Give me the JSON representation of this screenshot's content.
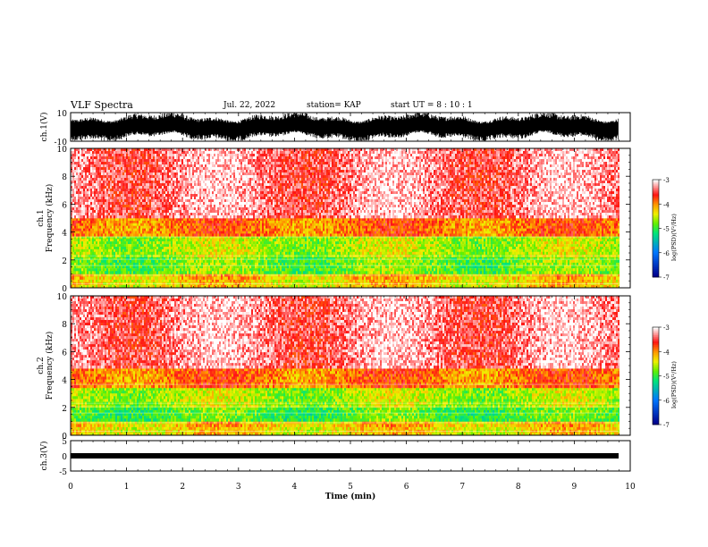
{
  "header": {
    "title": "VLF Spectra",
    "date": "Jul. 22, 2022",
    "station": "station= KAP",
    "start": "start UT =  8 : 10 : 1"
  },
  "colorbar": {
    "ticks": [
      "-3",
      "-4",
      "-5",
      "-6",
      "-7"
    ],
    "label": "log(PSD)(V²/Hz)"
  },
  "chart_data": [
    {
      "type": "line",
      "name": "ch1-waveform",
      "ylabel": "ch.1(V)",
      "ylim": [
        -10,
        10
      ],
      "yticks": [
        "10",
        "-10"
      ],
      "xlim": [
        0,
        10
      ],
      "description_values": {
        "amplitude_min": -9,
        "amplitude_max": 9
      }
    },
    {
      "type": "heatmap",
      "name": "ch1-spectrogram",
      "ylabel": "ch.1\nFrequency (kHz)",
      "ylim": [
        0,
        10
      ],
      "yticks": [
        "0",
        "2",
        "4",
        "6",
        "8",
        "10"
      ],
      "xlim": [
        0,
        9.8
      ],
      "colorscale": {
        "min": -7,
        "max": -3,
        "unit": "log(PSD)(V²/Hz)"
      },
      "bands": [
        {
          "f_from": 0,
          "f_to": 0.6,
          "level": -4.3
        },
        {
          "f_from": 0.6,
          "f_to": 1.0,
          "level": -4.2
        },
        {
          "f_from": 1.0,
          "f_to": 2.2,
          "level": -4.8
        },
        {
          "f_from": 2.2,
          "f_to": 3.7,
          "level": -4.6
        },
        {
          "f_from": 3.7,
          "f_to": 5.0,
          "level": -3.9
        },
        {
          "f_from": 5.0,
          "f_to": 10.0,
          "level": -3.3
        }
      ]
    },
    {
      "type": "heatmap",
      "name": "ch2-spectrogram",
      "ylabel": "ch.2\nFrequency (kHz)",
      "ylim": [
        0,
        10
      ],
      "yticks": [
        "0",
        "2",
        "4",
        "6",
        "8",
        "10"
      ],
      "xlim": [
        0,
        9.8
      ],
      "colorscale": {
        "min": -7,
        "max": -3,
        "unit": "log(PSD)(V²/Hz)"
      },
      "bands": [
        {
          "f_from": 0,
          "f_to": 0.6,
          "level": -4.3
        },
        {
          "f_from": 0.6,
          "f_to": 1.0,
          "level": -4.2
        },
        {
          "f_from": 1.0,
          "f_to": 2.0,
          "level": -4.9
        },
        {
          "f_from": 2.0,
          "f_to": 3.4,
          "level": -4.6
        },
        {
          "f_from": 3.4,
          "f_to": 4.8,
          "level": -3.9
        },
        {
          "f_from": 4.8,
          "f_to": 10.0,
          "level": -3.3
        }
      ]
    },
    {
      "type": "line",
      "name": "ch3-waveform",
      "ylabel": "ch.3(V)",
      "ylim": [
        -5,
        5
      ],
      "yticks": [
        "5",
        "0",
        "-5"
      ],
      "xlim": [
        0,
        10
      ],
      "description_values": {
        "amplitude_min": -0.3,
        "amplitude_max": 0.3
      }
    }
  ],
  "xaxis": {
    "label": "Time (min)",
    "ticks": [
      "0",
      "1",
      "2",
      "3",
      "4",
      "5",
      "6",
      "7",
      "8",
      "9",
      "10"
    ],
    "range": [
      0,
      10
    ]
  }
}
